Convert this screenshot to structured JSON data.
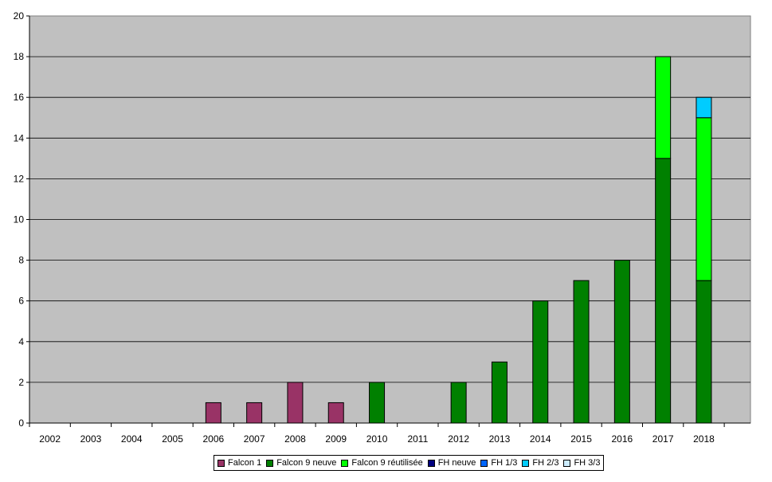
{
  "chart_data": {
    "type": "bar",
    "stacked": true,
    "categories": [
      "2002",
      "2003",
      "2004",
      "2005",
      "2006",
      "2007",
      "2008",
      "2009",
      "2010",
      "2011",
      "2012",
      "2013",
      "2014",
      "2015",
      "2016",
      "2017",
      "2018"
    ],
    "series": [
      {
        "name": "Falcon 1",
        "color": "#993366",
        "values": [
          0,
          0,
          0,
          0,
          1,
          1,
          2,
          1,
          0,
          0,
          0,
          0,
          0,
          0,
          0,
          0,
          0
        ]
      },
      {
        "name": "Falcon 9 neuve",
        "color": "#008000",
        "values": [
          0,
          0,
          0,
          0,
          0,
          0,
          0,
          0,
          2,
          0,
          2,
          3,
          6,
          7,
          8,
          13,
          7
        ]
      },
      {
        "name": "Falcon 9 réutilisée",
        "color": "#00FF00",
        "values": [
          0,
          0,
          0,
          0,
          0,
          0,
          0,
          0,
          0,
          0,
          0,
          0,
          0,
          0,
          0,
          5,
          8
        ]
      },
      {
        "name": "FH neuve",
        "color": "#000080",
        "values": [
          0,
          0,
          0,
          0,
          0,
          0,
          0,
          0,
          0,
          0,
          0,
          0,
          0,
          0,
          0,
          0,
          0
        ]
      },
      {
        "name": "FH 1/3",
        "color": "#0066FF",
        "values": [
          0,
          0,
          0,
          0,
          0,
          0,
          0,
          0,
          0,
          0,
          0,
          0,
          0,
          0,
          0,
          0,
          0
        ]
      },
      {
        "name": "FH 2/3",
        "color": "#00CCFF",
        "values": [
          0,
          0,
          0,
          0,
          0,
          0,
          0,
          0,
          0,
          0,
          0,
          0,
          0,
          0,
          0,
          0,
          1
        ]
      },
      {
        "name": "FH 3/3",
        "color": "#CCECFF",
        "values": [
          0,
          0,
          0,
          0,
          0,
          0,
          0,
          0,
          0,
          0,
          0,
          0,
          0,
          0,
          0,
          0,
          0
        ]
      }
    ],
    "ylim": [
      0,
      20
    ],
    "yticks": [
      "0",
      "2",
      "4",
      "6",
      "8",
      "10",
      "12",
      "14",
      "16",
      "18",
      "20"
    ],
    "grid": true,
    "legend_position": "bottom",
    "plot_background": "#C0C0C0"
  }
}
